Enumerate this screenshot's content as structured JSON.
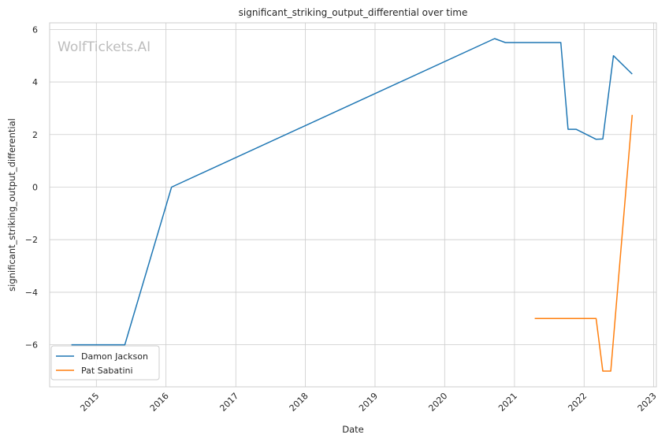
{
  "chart_data": {
    "type": "line",
    "title": "significant_striking_output_differential over time",
    "xlabel": "Date",
    "ylabel": "significant_striking_output_differential",
    "watermark": "WolfTickets.AI",
    "xlim": [
      "2014-05-01",
      "2023-01-15"
    ],
    "ylim": [
      -7.6,
      6.25
    ],
    "x_ticks": [
      "2015-01-01",
      "2016-01-01",
      "2017-01-01",
      "2018-01-01",
      "2019-01-01",
      "2020-01-01",
      "2021-01-01",
      "2022-01-01",
      "2023-01-01"
    ],
    "x_tick_labels": [
      "2015",
      "2016",
      "2017",
      "2018",
      "2019",
      "2020",
      "2021",
      "2022",
      "2023"
    ],
    "y_ticks": [
      6,
      4,
      2,
      0,
      -2,
      -4,
      -6
    ],
    "y_tick_labels": [
      "6",
      "4",
      "2",
      "0",
      "−2",
      "−4",
      "−6"
    ],
    "grid": true,
    "legend_position": "bottom-left",
    "series": [
      {
        "name": "Damon Jackson",
        "color": "#1f77b4",
        "points": [
          [
            "2014-08-23",
            -6.0
          ],
          [
            "2015-05-30",
            -6.0
          ],
          [
            "2016-01-30",
            0.0
          ],
          [
            "2020-09-19",
            5.65
          ],
          [
            "2020-11-14",
            5.5
          ],
          [
            "2021-09-01",
            5.5
          ],
          [
            "2021-10-09",
            2.2
          ],
          [
            "2021-11-20",
            2.2
          ],
          [
            "2022-03-05",
            1.82
          ],
          [
            "2022-04-09",
            1.83
          ],
          [
            "2022-06-04",
            5.0
          ],
          [
            "2022-09-10",
            4.3
          ]
        ]
      },
      {
        "name": "Pat Sabatini",
        "color": "#ff7f0e",
        "points": [
          [
            "2021-04-17",
            -5.0
          ],
          [
            "2022-03-05",
            -5.0
          ],
          [
            "2022-04-09",
            -7.0
          ],
          [
            "2022-05-21",
            -7.0
          ],
          [
            "2022-09-10",
            2.75
          ]
        ]
      }
    ]
  }
}
